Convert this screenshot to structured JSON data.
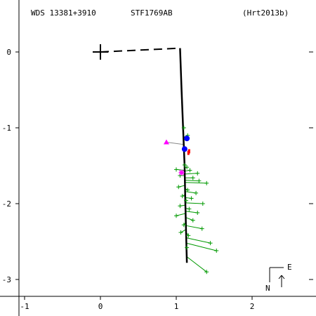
{
  "header": {
    "wds": "WDS 13381+3910",
    "pair": "STF1769AB",
    "reference": "(Hrt2013b)"
  },
  "compass": {
    "north": "N",
    "east": "E"
  },
  "colors": {
    "orbit": "#000000",
    "residual": "#009900",
    "observation": "#009900",
    "speckle": "#0000ff",
    "special": "#ff00ff",
    "highlight": "#ff0000"
  },
  "chart_data": {
    "type": "scatter",
    "xlim": [
      -1.05,
      2.8
    ],
    "ylim": [
      -3.1,
      0.25
    ],
    "x_ticks": [
      -1,
      0,
      1,
      2
    ],
    "y_ticks": [
      0,
      -1,
      -2,
      -3
    ],
    "x_tick_labels": [
      "-1",
      "0",
      "1",
      "2"
    ],
    "y_tick_labels": [
      "0",
      "-1",
      "-2",
      "-3"
    ],
    "primary": [
      0,
      0
    ],
    "periastron_line": [
      [
        0,
        0
      ],
      [
        1.05,
        0.05
      ]
    ],
    "orbit": [
      [
        1.05,
        0.05
      ],
      [
        1.07,
        -0.5
      ],
      [
        1.09,
        -1.0
      ],
      [
        1.11,
        -1.5
      ],
      [
        1.12,
        -2.0
      ],
      [
        1.13,
        -2.4
      ],
      [
        1.14,
        -2.78
      ]
    ],
    "observations": [
      {
        "obs": [
          1.1,
          -1.0
        ],
        "pred": [
          1.1,
          -1.01
        ]
      },
      {
        "obs": [
          1.15,
          -1.1
        ],
        "pred": [
          1.11,
          -1.12
        ]
      },
      {
        "obs": [
          1.11,
          -1.49
        ],
        "pred": [
          1.11,
          -1.5
        ]
      },
      {
        "obs": [
          1.14,
          -1.52
        ],
        "pred": [
          1.11,
          -1.53
        ]
      },
      {
        "obs": [
          1.0,
          -1.55
        ],
        "pred": [
          1.11,
          -1.56
        ]
      },
      {
        "obs": [
          1.18,
          -1.56
        ],
        "pred": [
          1.11,
          -1.57
        ]
      },
      {
        "obs": [
          1.28,
          -1.6
        ],
        "pred": [
          1.11,
          -1.61
        ]
      },
      {
        "obs": [
          1.05,
          -1.63
        ],
        "pred": [
          1.11,
          -1.63
        ]
      },
      {
        "obs": [
          1.22,
          -1.66
        ],
        "pred": [
          1.11,
          -1.66
        ]
      },
      {
        "obs": [
          1.3,
          -1.7
        ],
        "pred": [
          1.11,
          -1.69
        ]
      },
      {
        "obs": [
          1.4,
          -1.73
        ],
        "pred": [
          1.11,
          -1.72
        ]
      },
      {
        "obs": [
          1.03,
          -1.78
        ],
        "pred": [
          1.11,
          -1.76
        ]
      },
      {
        "obs": [
          1.15,
          -1.82
        ],
        "pred": [
          1.11,
          -1.8
        ]
      },
      {
        "obs": [
          1.26,
          -1.86
        ],
        "pred": [
          1.12,
          -1.84
        ]
      },
      {
        "obs": [
          1.08,
          -1.9
        ],
        "pred": [
          1.12,
          -1.88
        ]
      },
      {
        "obs": [
          1.2,
          -1.93
        ],
        "pred": [
          1.12,
          -1.92
        ]
      },
      {
        "obs": [
          1.13,
          -1.96
        ],
        "pred": [
          1.12,
          -1.95
        ]
      },
      {
        "obs": [
          1.35,
          -2.0
        ],
        "pred": [
          1.12,
          -1.99
        ]
      },
      {
        "obs": [
          1.05,
          -2.03
        ],
        "pred": [
          1.12,
          -2.02
        ]
      },
      {
        "obs": [
          1.17,
          -2.07
        ],
        "pred": [
          1.12,
          -2.06
        ]
      },
      {
        "obs": [
          1.28,
          -2.12
        ],
        "pred": [
          1.12,
          -2.1
        ]
      },
      {
        "obs": [
          1.0,
          -2.16
        ],
        "pred": [
          1.12,
          -2.13
        ]
      },
      {
        "obs": [
          1.22,
          -2.22
        ],
        "pred": [
          1.12,
          -2.18
        ]
      },
      {
        "obs": [
          1.1,
          -2.28
        ],
        "pred": [
          1.13,
          -2.24
        ]
      },
      {
        "obs": [
          1.34,
          -2.33
        ],
        "pred": [
          1.13,
          -2.29
        ]
      },
      {
        "obs": [
          1.06,
          -2.38
        ],
        "pred": [
          1.13,
          -2.34
        ]
      },
      {
        "obs": [
          1.16,
          -2.42
        ],
        "pred": [
          1.13,
          -2.38
        ]
      },
      {
        "obs": [
          1.45,
          -2.52
        ],
        "pred": [
          1.13,
          -2.45
        ]
      },
      {
        "obs": [
          1.53,
          -2.62
        ],
        "pred": [
          1.13,
          -2.52
        ]
      },
      {
        "obs": [
          1.14,
          -2.58
        ],
        "pred": [
          1.13,
          -2.55
        ]
      },
      {
        "obs": [
          1.4,
          -2.9
        ],
        "pred": [
          1.14,
          -2.7
        ]
      }
    ],
    "speckle": [
      {
        "obs": [
          1.14,
          -1.14
        ],
        "pred": [
          1.1,
          -1.12
        ]
      },
      {
        "obs": [
          1.11,
          -1.28
        ],
        "pred": [
          1.1,
          -1.26
        ]
      }
    ],
    "special_triangles": [
      {
        "obs": [
          0.87,
          -1.19
        ],
        "pred": [
          1.1,
          -1.22
        ]
      }
    ],
    "special_stars": [
      {
        "obs": [
          1.07,
          -1.59
        ],
        "pred": [
          1.11,
          -1.59
        ]
      }
    ],
    "highlight_marks": [
      [
        1.17,
        -1.31
      ],
      [
        1.16,
        -1.33
      ]
    ]
  }
}
